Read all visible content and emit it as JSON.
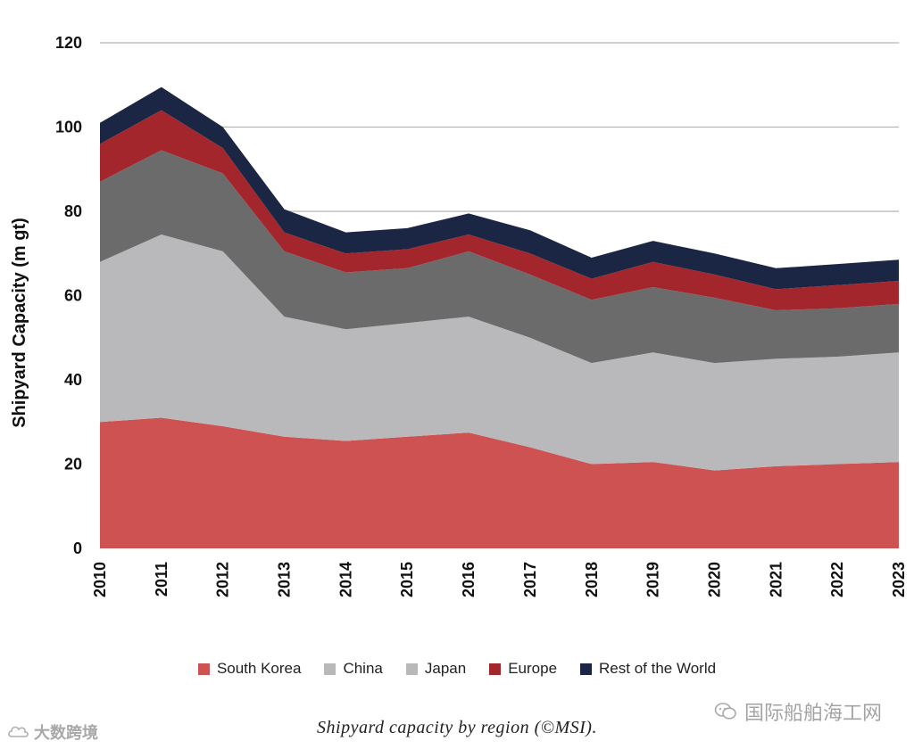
{
  "chart_data": {
    "type": "area",
    "stacked": true,
    "title": "",
    "ylabel": "Shipyard Capacity (m gt)",
    "xlabel": "",
    "ylim": [
      0,
      120
    ],
    "yticks": [
      0,
      20,
      40,
      60,
      80,
      100,
      120
    ],
    "grid": true,
    "x": [
      "2010",
      "2011",
      "2012",
      "2013",
      "2014",
      "2015",
      "2016",
      "2017",
      "2018",
      "2019",
      "2020",
      "2021",
      "2022",
      "2023"
    ],
    "series": [
      {
        "name": "South Korea",
        "color": "#cf5253",
        "values": [
          30,
          31,
          29,
          26.5,
          25.5,
          26.5,
          27.5,
          24,
          20,
          20.5,
          18.5,
          19.5,
          20,
          20.5
        ]
      },
      {
        "name": "China",
        "color": "#b9b9bc",
        "values": [
          38,
          43.5,
          41.5,
          28.5,
          26.5,
          27,
          27.5,
          26,
          24,
          26,
          25.5,
          25.5,
          25.5,
          26
        ]
      },
      {
        "name": "Japan",
        "color": "#6b6b6b",
        "values": [
          19,
          20,
          18.5,
          15.5,
          13.5,
          13,
          15.5,
          15,
          15,
          15.5,
          15.5,
          11.5,
          11.5,
          11.5
        ]
      },
      {
        "name": "Europe",
        "color": "#a3262d",
        "values": [
          9,
          9.5,
          6,
          4.5,
          4.5,
          4.5,
          4,
          5,
          5,
          6,
          5.5,
          5,
          5.5,
          5.5
        ]
      },
      {
        "name": "Rest of the World",
        "color": "#1b2644",
        "values": [
          5,
          5.5,
          5,
          5.5,
          5,
          5,
          5,
          5.5,
          5,
          5,
          5,
          5,
          5,
          5
        ]
      }
    ]
  },
  "legend_label_south_korea": "South Korea",
  "legend_label_china": "China",
  "legend_label_japan": "Japan",
  "legend_label_europe": "Europe",
  "legend_label_row": "Rest of the World",
  "caption": "Shipyard capacity by region (©MSI).",
  "watermarks": {
    "left": "大数跨境",
    "right": "国际船舶海工网"
  }
}
